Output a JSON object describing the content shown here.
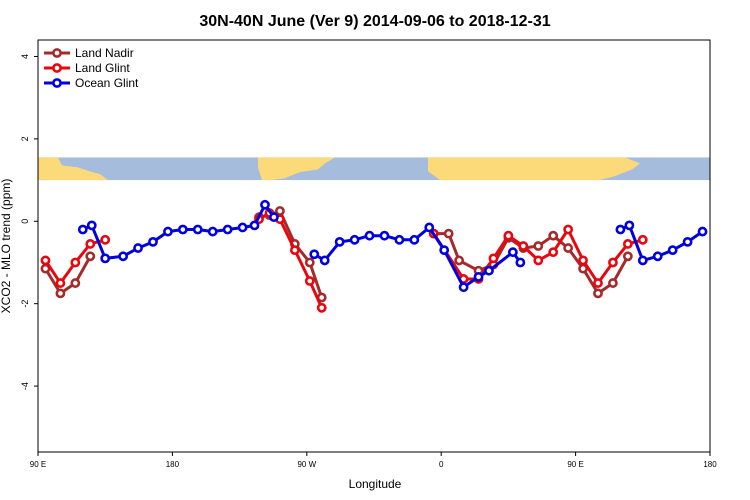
{
  "chart_data": {
    "type": "line",
    "title": "30N-40N June (Ver 9)   2014-09-06 to 2018-12-31",
    "xlabel": "Longitude",
    "ylabel": "XCO2 - MLO trend (ppm)",
    "x_ticks": [
      {
        "pos": 90,
        "label": "90 E"
      },
      {
        "pos": 180,
        "label": "180"
      },
      {
        "pos": 270,
        "label": "90 W"
      },
      {
        "pos": 360,
        "label": "0"
      },
      {
        "pos": 450,
        "label": "90 E"
      },
      {
        "pos": 540,
        "label": "180"
      }
    ],
    "y_ticks": [
      {
        "value": 4,
        "label": "4"
      },
      {
        "value": 2,
        "label": "2"
      },
      {
        "value": 0,
        "label": "0"
      },
      {
        "value": -2,
        "label": "-2"
      },
      {
        "value": -4,
        "label": "-4"
      }
    ],
    "xlim": [
      90,
      540
    ],
    "ylim": [
      -5.6,
      4.4
    ],
    "legend_position": "top-left",
    "map_strip": {
      "y_range": [
        1.0,
        1.55
      ],
      "ocean_color": "#a6bcdc",
      "land_color": "#fcd979"
    },
    "series": [
      {
        "name": "Land Nadir",
        "color": "#a52a2a",
        "segments": [
          [
            [
              95,
              -1.15
            ],
            [
              105,
              -1.75
            ],
            [
              115,
              -1.5
            ],
            [
              125,
              -0.85
            ]
          ],
          [
            [
              238,
              0.1
            ],
            [
              245,
              0.15
            ],
            [
              252,
              0.25
            ],
            [
              262,
              -0.55
            ],
            [
              272,
              -1.0
            ],
            [
              280,
              -1.85
            ]
          ],
          [
            [
              355,
              -0.3
            ],
            [
              365,
              -0.3
            ],
            [
              372,
              -0.95
            ],
            [
              385,
              -1.2
            ],
            [
              395,
              -1.05
            ],
            [
              405,
              -0.4
            ],
            [
              415,
              -0.65
            ],
            [
              425,
              -0.6
            ],
            [
              435,
              -0.35
            ],
            [
              445,
              -0.65
            ],
            [
              455,
              -1.15
            ],
            [
              465,
              -1.75
            ],
            [
              475,
              -1.5
            ],
            [
              485,
              -0.85
            ]
          ]
        ]
      },
      {
        "name": "Land Glint",
        "color": "#e8070f",
        "segments": [
          [
            [
              95,
              -0.95
            ],
            [
              105,
              -1.5
            ],
            [
              115,
              -1.0
            ],
            [
              125,
              -0.55
            ],
            [
              135,
              -0.45
            ]
          ],
          [
            [
              238,
              0.05
            ],
            [
              245,
              0.2
            ],
            [
              252,
              0.05
            ],
            [
              262,
              -0.7
            ],
            [
              272,
              -1.45
            ],
            [
              280,
              -2.1
            ]
          ],
          [
            [
              355,
              -0.3
            ],
            [
              375,
              -1.4
            ],
            [
              385,
              -1.4
            ],
            [
              395,
              -0.9
            ],
            [
              405,
              -0.35
            ],
            [
              415,
              -0.6
            ],
            [
              425,
              -0.95
            ],
            [
              435,
              -0.75
            ],
            [
              445,
              -0.2
            ],
            [
              455,
              -0.95
            ],
            [
              465,
              -1.5
            ],
            [
              475,
              -1.0
            ],
            [
              485,
              -0.55
            ],
            [
              495,
              -0.45
            ]
          ]
        ]
      },
      {
        "name": "Ocean Glint",
        "color": "#0000e0",
        "segments": [
          [
            [
              120,
              -0.2
            ],
            [
              126,
              -0.1
            ],
            [
              135,
              -0.9
            ],
            [
              147,
              -0.85
            ],
            [
              157,
              -0.65
            ],
            [
              167,
              -0.5
            ],
            [
              177,
              -0.25
            ],
            [
              187,
              -0.2
            ],
            [
              197,
              -0.2
            ],
            [
              207,
              -0.25
            ],
            [
              217,
              -0.2
            ],
            [
              227,
              -0.15
            ],
            [
              235,
              -0.1
            ],
            [
              242,
              0.4
            ],
            [
              248,
              0.1
            ]
          ],
          [
            [
              275,
              -0.8
            ],
            [
              282,
              -0.95
            ],
            [
              292,
              -0.5
            ],
            [
              302,
              -0.45
            ],
            [
              312,
              -0.35
            ],
            [
              322,
              -0.35
            ],
            [
              332,
              -0.45
            ],
            [
              342,
              -0.45
            ],
            [
              352,
              -0.15
            ],
            [
              362,
              -0.7
            ],
            [
              375,
              -1.6
            ],
            [
              385,
              -1.35
            ],
            [
              392,
              -1.2
            ],
            [
              408,
              -0.75
            ],
            [
              413,
              -1.0
            ]
          ],
          [
            [
              480,
              -0.2
            ],
            [
              486,
              -0.1
            ],
            [
              495,
              -0.95
            ],
            [
              505,
              -0.85
            ],
            [
              515,
              -0.7
            ],
            [
              525,
              -0.5
            ],
            [
              535,
              -0.25
            ]
          ]
        ]
      }
    ]
  }
}
